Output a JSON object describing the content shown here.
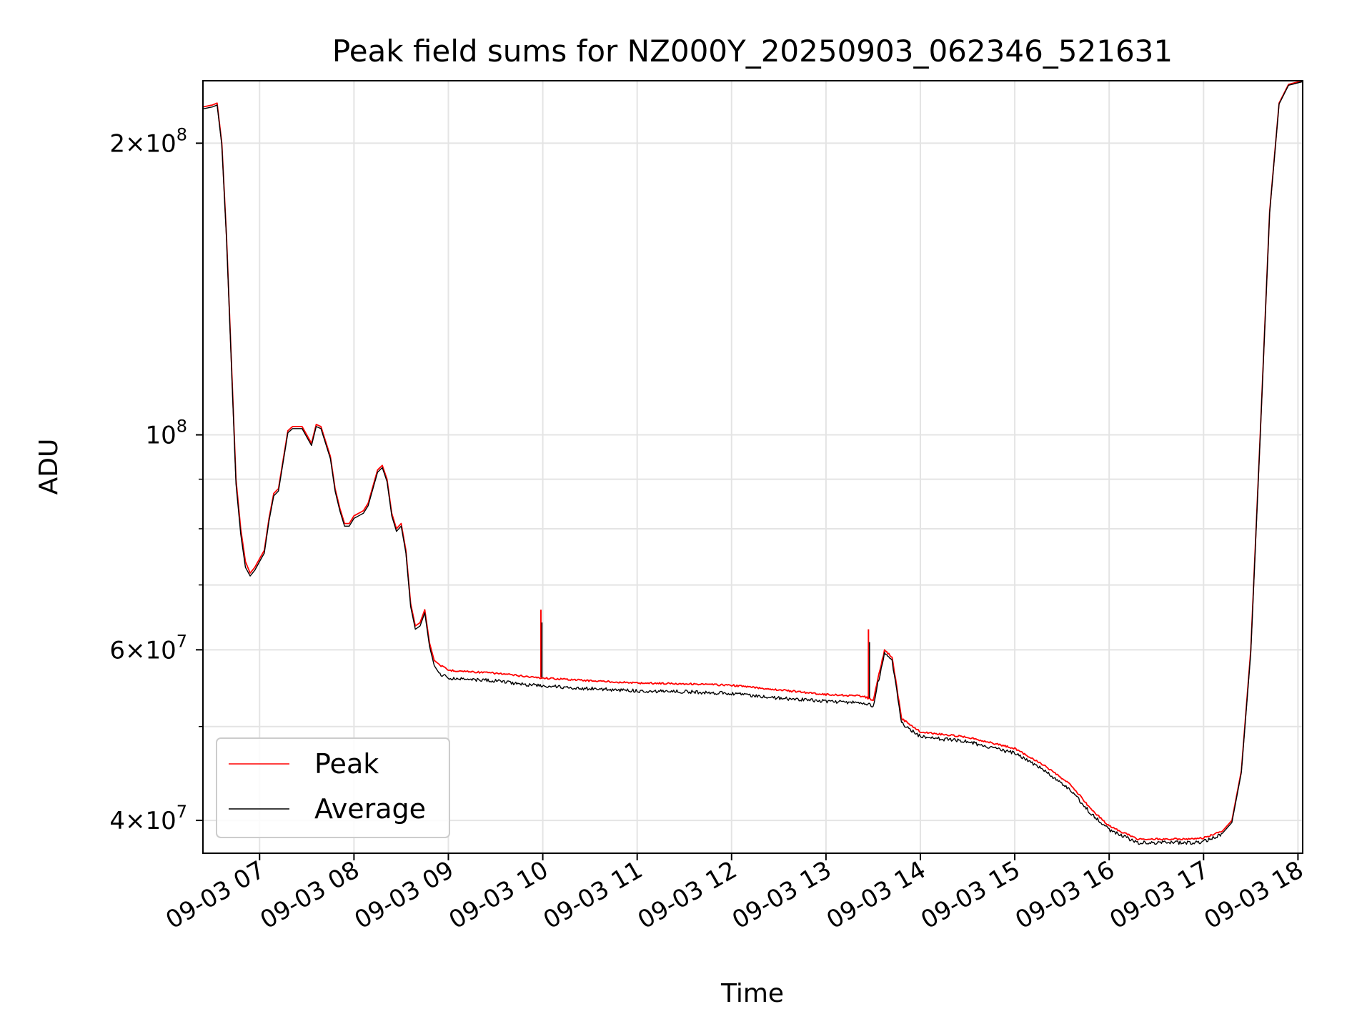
{
  "chart_data": {
    "type": "line",
    "title": "Peak field sums for NZ000Y_20250903_062346_521631",
    "xlabel": "Time",
    "ylabel": "ADU",
    "y_scale": "log",
    "ylim": [
      37000000,
      232000000
    ],
    "xlim_hours": [
      6.4,
      18.05
    ],
    "x_ticks": [
      {
        "value": 7,
        "label": "09-03 07"
      },
      {
        "value": 8,
        "label": "09-03 08"
      },
      {
        "value": 9,
        "label": "09-03 09"
      },
      {
        "value": 10,
        "label": "09-03 10"
      },
      {
        "value": 11,
        "label": "09-03 11"
      },
      {
        "value": 12,
        "label": "09-03 12"
      },
      {
        "value": 13,
        "label": "09-03 13"
      },
      {
        "value": 14,
        "label": "09-03 14"
      },
      {
        "value": 15,
        "label": "09-03 15"
      },
      {
        "value": 16,
        "label": "09-03 16"
      },
      {
        "value": 17,
        "label": "09-03 17"
      },
      {
        "value": 18,
        "label": "09-03 18"
      }
    ],
    "y_ticks": [
      {
        "value": 200000000,
        "base": "2×10",
        "exp": "8"
      },
      {
        "value": 100000000,
        "base": "10",
        "exp": "8"
      },
      {
        "value": 60000000,
        "base": "6×10",
        "exp": "7"
      },
      {
        "value": 40000000,
        "base": "4×10",
        "exp": "7"
      }
    ],
    "y_minor_ticks": [
      50000000,
      70000000,
      80000000,
      90000000
    ],
    "grid": true,
    "legend_position": "lower-left",
    "x_unit": "hour of 2025-09-03",
    "series": [
      {
        "name": "Peak",
        "color": "#ff0000",
        "x": [
          6.4,
          6.5,
          6.55,
          6.6,
          6.65,
          6.7,
          6.75,
          6.8,
          6.85,
          6.9,
          6.95,
          7.0,
          7.05,
          7.1,
          7.15,
          7.2,
          7.3,
          7.35,
          7.45,
          7.55,
          7.6,
          7.65,
          7.75,
          7.8,
          7.85,
          7.9,
          7.95,
          8.0,
          8.05,
          8.1,
          8.15,
          8.25,
          8.3,
          8.35,
          8.4,
          8.45,
          8.5,
          8.55,
          8.6,
          8.65,
          8.7,
          8.75,
          8.8,
          8.85,
          8.9,
          9.0,
          9.5,
          9.95,
          10.5,
          11.0,
          11.5,
          12.0,
          12.5,
          13.0,
          13.4,
          13.5,
          13.55,
          13.62,
          13.7,
          13.75,
          13.8,
          14.0,
          14.5,
          15.0,
          15.3,
          15.6,
          15.8,
          16.0,
          16.3,
          16.6,
          16.9,
          17.0,
          17.2,
          17.3,
          17.4,
          17.5,
          17.6,
          17.7,
          17.8,
          17.9,
          18.05
        ],
        "y": [
          218000000,
          219000000,
          220000000,
          200000000,
          160000000,
          120000000,
          90000000,
          80000000,
          74000000,
          72000000,
          73000000,
          74500000,
          76000000,
          82000000,
          87000000,
          88000000,
          101000000,
          102000000,
          102000000,
          98000000,
          102500000,
          102000000,
          95000000,
          88000000,
          84000000,
          81000000,
          81000000,
          82500000,
          83000000,
          83500000,
          85000000,
          92000000,
          93000000,
          90000000,
          83000000,
          80000000,
          81000000,
          76000000,
          67000000,
          63500000,
          64000000,
          66000000,
          61000000,
          58500000,
          58000000,
          57200000,
          56800000,
          56200000,
          55800000,
          55500000,
          55400000,
          55200000,
          54600000,
          54000000,
          53800000,
          53200000,
          56000000,
          60000000,
          59000000,
          55000000,
          51000000,
          49400000,
          48800000,
          47500000,
          45700000,
          43500000,
          41200000,
          39500000,
          38300000,
          38300000,
          38300000,
          38400000,
          39000000,
          40000000,
          45000000,
          60000000,
          100000000,
          170000000,
          220000000,
          230000000,
          232000000
        ],
        "spikes": [
          {
            "x": 9.98,
            "y": 66000000
          },
          {
            "x": 13.45,
            "y": 63000000
          }
        ]
      },
      {
        "name": "Average",
        "color": "#000000",
        "x": [
          6.4,
          6.5,
          6.55,
          6.6,
          6.65,
          6.7,
          6.75,
          6.8,
          6.85,
          6.9,
          6.95,
          7.0,
          7.05,
          7.1,
          7.15,
          7.2,
          7.3,
          7.35,
          7.45,
          7.55,
          7.6,
          7.65,
          7.75,
          7.8,
          7.85,
          7.9,
          7.95,
          8.0,
          8.05,
          8.1,
          8.15,
          8.25,
          8.3,
          8.35,
          8.4,
          8.45,
          8.5,
          8.55,
          8.6,
          8.65,
          8.7,
          8.75,
          8.8,
          8.85,
          8.9,
          9.0,
          9.5,
          9.95,
          10.5,
          11.0,
          11.5,
          12.0,
          12.5,
          13.0,
          13.4,
          13.5,
          13.55,
          13.62,
          13.7,
          13.75,
          13.8,
          14.0,
          14.5,
          15.0,
          15.3,
          15.6,
          15.8,
          16.0,
          16.3,
          16.6,
          16.9,
          17.0,
          17.2,
          17.3,
          17.4,
          17.5,
          17.6,
          17.7,
          17.8,
          17.9,
          18.05
        ],
        "y": [
          217000000,
          218000000,
          219000000,
          199000000,
          159000000,
          119000000,
          89000000,
          79000000,
          73000000,
          71500000,
          72500000,
          74000000,
          75500000,
          81500000,
          86500000,
          87500000,
          100500000,
          101500000,
          101500000,
          97500000,
          102000000,
          101500000,
          94500000,
          87500000,
          83500000,
          80500000,
          80500000,
          82000000,
          82500000,
          83000000,
          84500000,
          91500000,
          92500000,
          89500000,
          82500000,
          79500000,
          80500000,
          75500000,
          66500000,
          63000000,
          63500000,
          65500000,
          60500000,
          57800000,
          56800000,
          56200000,
          55800000,
          55200000,
          54800000,
          54500000,
          54400000,
          54200000,
          53600000,
          53200000,
          53000000,
          52600000,
          55500000,
          59500000,
          58500000,
          54500000,
          50500000,
          48900000,
          48300000,
          47000000,
          45200000,
          43000000,
          40800000,
          39200000,
          38000000,
          38000000,
          38000000,
          38100000,
          38800000,
          39800000,
          44800000,
          59500000,
          99500000,
          169500000,
          219500000,
          229500000,
          231500000
        ]
      }
    ]
  }
}
